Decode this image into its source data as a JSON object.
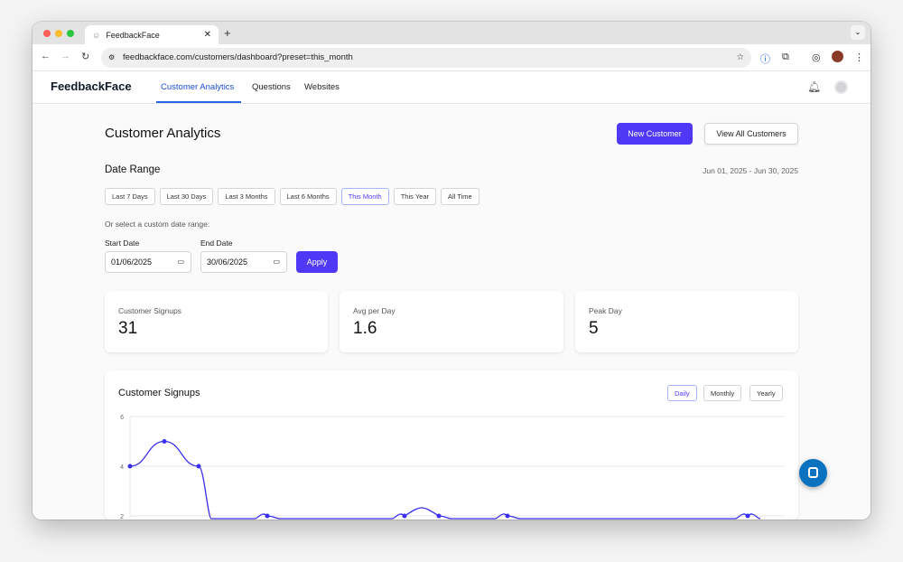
{
  "browser": {
    "tab_title": "FeedbackFace",
    "url": "feedbackface.com/customers/dashboard?preset=this_month"
  },
  "nav": {
    "logo": "FeedbackFace",
    "links": [
      {
        "label": "Customer Analytics",
        "active": true
      },
      {
        "label": "Questions"
      },
      {
        "label": "Websites"
      }
    ]
  },
  "header": {
    "title": "Customer Analytics",
    "new_customer": "New Customer",
    "view_all": "View All Customers"
  },
  "date_range": {
    "title": "Date Range",
    "summary": "Jun 01, 2025 - Jun 30, 2025",
    "presets": [
      "Last 7 Days",
      "Last 30 Days",
      "Last 3 Months",
      "Last 6 Months",
      "This Month",
      "This Year",
      "All Time"
    ],
    "selected": "This Month",
    "custom_label": "Or select a custom date range:",
    "start_label": "Start Date",
    "start_value": "01/06/2025",
    "end_label": "End Date",
    "end_value": "30/06/2025",
    "apply": "Apply"
  },
  "stats": [
    {
      "label": "Customer Signups",
      "value": "31"
    },
    {
      "label": "Avg per Day",
      "value": "1.6"
    },
    {
      "label": "Peak Day",
      "value": "5"
    }
  ],
  "chart": {
    "title": "Customer Signups",
    "toggles": [
      "Daily",
      "Monthly",
      "Yearly"
    ],
    "selected": "Daily"
  },
  "colors": {
    "accent": "#4f39f6",
    "nav_active": "#2563eb",
    "line": "#3b2ff0"
  },
  "chart_data": {
    "type": "line",
    "title": "Customer Signups",
    "yticks": [
      "6",
      "4",
      "2"
    ],
    "ylim_visible": [
      2,
      6
    ],
    "x_unit": "day of June 2025",
    "points": [
      {
        "day": 1,
        "value": 4
      },
      {
        "day": 2,
        "value": 5
      },
      {
        "day": 3,
        "value": 4
      },
      {
        "day": 5,
        "value": 2
      },
      {
        "day": 9,
        "value": 2
      },
      {
        "day": 10,
        "value": 2
      },
      {
        "day": 12,
        "value": 2
      },
      {
        "day": 19,
        "value": 2
      }
    ]
  }
}
